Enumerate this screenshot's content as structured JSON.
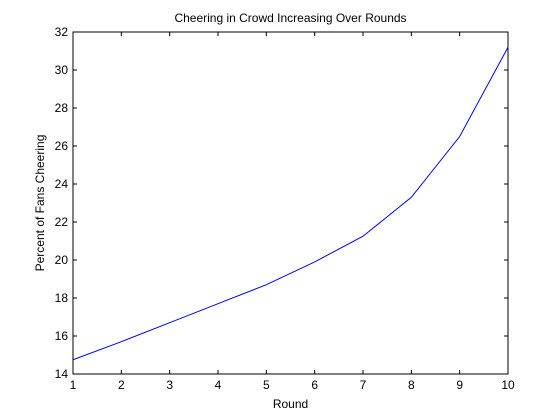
{
  "chart_data": {
    "type": "line",
    "title": "Cheering in Crowd Increasing Over Rounds",
    "xlabel": "Round",
    "ylabel": "Percent of Fans Cheering",
    "xlim": [
      1,
      10
    ],
    "ylim": [
      14,
      32
    ],
    "xticks": [
      "1",
      "2",
      "3",
      "4",
      "5",
      "6",
      "7",
      "8",
      "9",
      "10"
    ],
    "yticks": [
      "14",
      "16",
      "18",
      "20",
      "22",
      "24",
      "26",
      "28",
      "30",
      "32"
    ],
    "grid": false,
    "series": [
      {
        "x": [
          1,
          2,
          3,
          4,
          5,
          6,
          7,
          8,
          9,
          10
        ],
        "values": [
          14.75,
          15.7,
          16.7,
          17.7,
          18.7,
          19.9,
          21.25,
          23.3,
          26.5,
          31.2
        ],
        "color": "#0000ff"
      }
    ]
  }
}
